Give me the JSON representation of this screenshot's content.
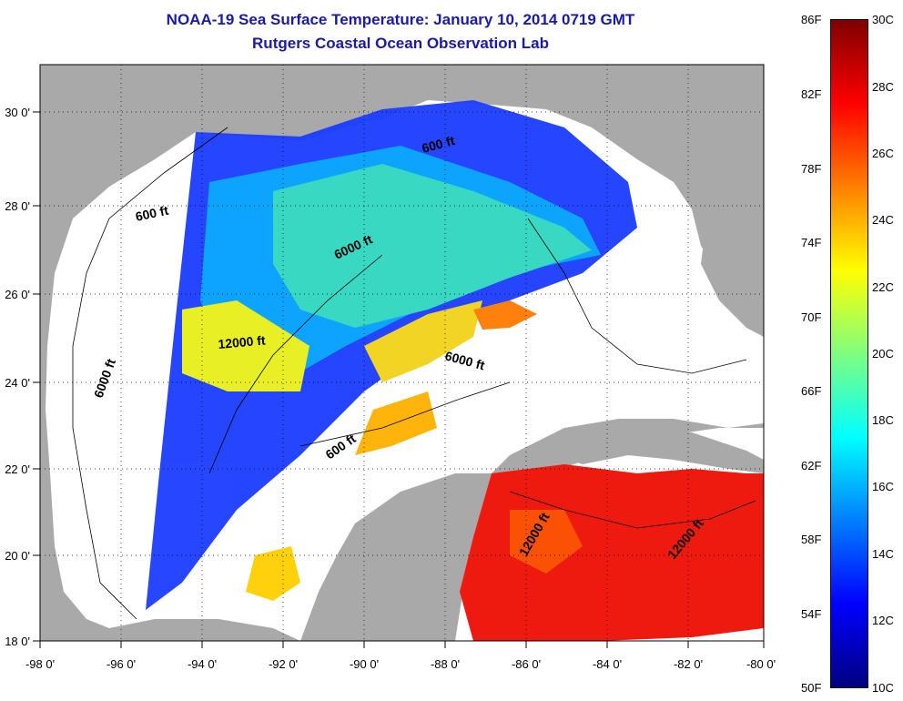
{
  "title": {
    "line1": "NOAA-19 Sea Surface Temperature:  January 10, 2014 0719 GMT",
    "line2": "Rutgers Coastal Ocean Observation Lab"
  },
  "map": {
    "lon_ticks": [
      "-98 0'",
      "-96 0'",
      "-94 0'",
      "-92 0'",
      "-90 0'",
      "-88 0'",
      "-86 0'",
      "-84 0'",
      "-82 0'",
      "-80 0'"
    ],
    "lat_ticks": [
      "18 0'",
      "20 0'",
      "22 0'",
      "24 0'",
      "26 0'",
      "28 0'",
      "30 0'"
    ],
    "contour_labels": [
      "600 ft",
      "6000 ft",
      "12000 ft",
      "6000 ft",
      "600 ft",
      "6000 ft",
      "600 ft",
      "12000 ft",
      "12000 ft"
    ],
    "colors": {
      "land": "#a9a9a9",
      "nodata": "#ffffff"
    }
  },
  "colorbar": {
    "fahrenheit": [
      "86F",
      "82F",
      "78F",
      "74F",
      "70F",
      "66F",
      "62F",
      "58F",
      "54F",
      "50F"
    ],
    "celsius": [
      "30C",
      "28C",
      "26C",
      "24C",
      "22C",
      "20C",
      "18C",
      "16C",
      "14C",
      "12C",
      "10C"
    ],
    "colors": [
      "#7f0000",
      "#ff0000",
      "#ff7f00",
      "#ffff00",
      "#7fff7f",
      "#00ffff",
      "#007fff",
      "#0000ff",
      "#00007f"
    ]
  }
}
